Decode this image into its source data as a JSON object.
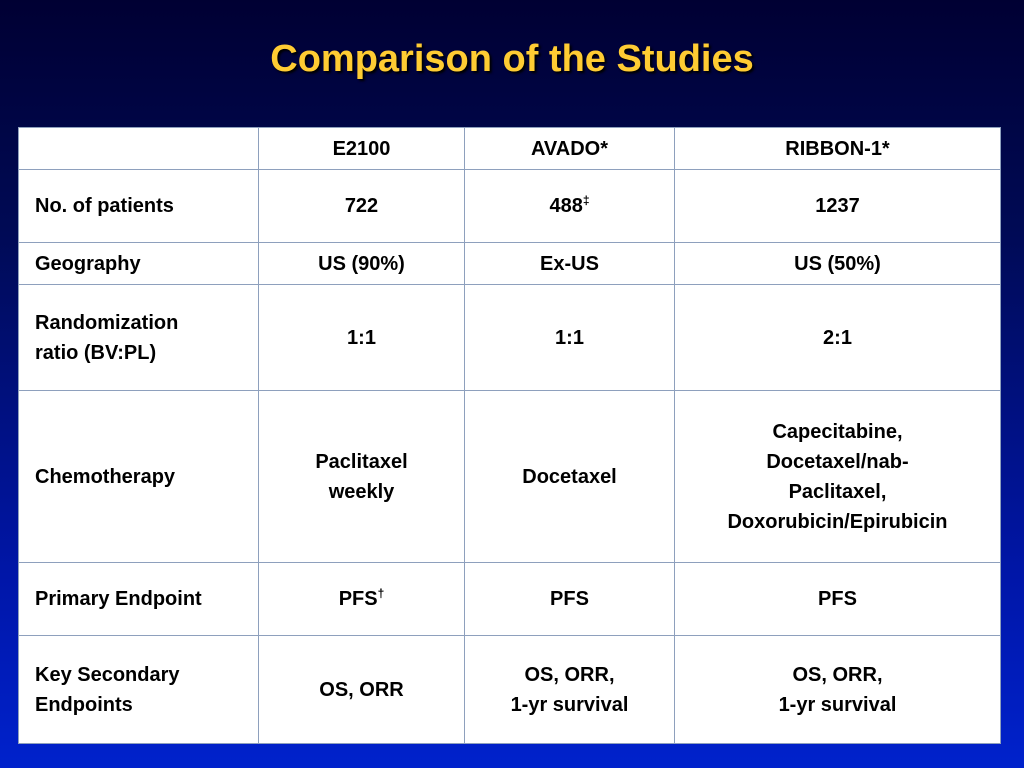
{
  "title": "Comparison of the Studies",
  "table": {
    "columns": [
      "",
      "E2100",
      "AVADO*",
      "RIBBON-1*"
    ],
    "rows": [
      {
        "label": "No. of patients",
        "cells": [
          {
            "text": "722",
            "sup": ""
          },
          {
            "text": "488",
            "sup": "‡"
          },
          {
            "text": "1237",
            "sup": ""
          }
        ]
      },
      {
        "label": "Geography",
        "cells": [
          {
            "text": "US (90%)",
            "sup": ""
          },
          {
            "text": "Ex-US",
            "sup": ""
          },
          {
            "text": "US (50%)",
            "sup": ""
          }
        ]
      },
      {
        "label_lines": [
          "Randomization",
          "ratio (BV:PL)"
        ],
        "cells": [
          {
            "text": "1:1",
            "sup": ""
          },
          {
            "text": "1:1",
            "sup": ""
          },
          {
            "text": "2:1",
            "sup": ""
          }
        ]
      },
      {
        "label": "Chemotherapy",
        "cells": [
          {
            "lines": [
              "Paclitaxel",
              "weekly"
            ]
          },
          {
            "text": "Docetaxel",
            "sup": ""
          },
          {
            "lines": [
              "Capecitabine,",
              "Docetaxel/nab-",
              "Paclitaxel,",
              "Doxorubicin/Epirubicin"
            ]
          }
        ]
      },
      {
        "label": "Primary Endpoint",
        "cells": [
          {
            "text": "PFS",
            "sup": "†"
          },
          {
            "text": "PFS",
            "sup": ""
          },
          {
            "text": "PFS",
            "sup": ""
          }
        ]
      },
      {
        "label_lines": [
          "Key Secondary",
          "Endpoints"
        ],
        "cells": [
          {
            "text": "OS, ORR",
            "sup": ""
          },
          {
            "lines": [
              "OS, ORR,",
              "1-yr survival"
            ]
          },
          {
            "lines": [
              "OS, ORR,",
              "1-yr survival"
            ]
          }
        ]
      }
    ]
  }
}
